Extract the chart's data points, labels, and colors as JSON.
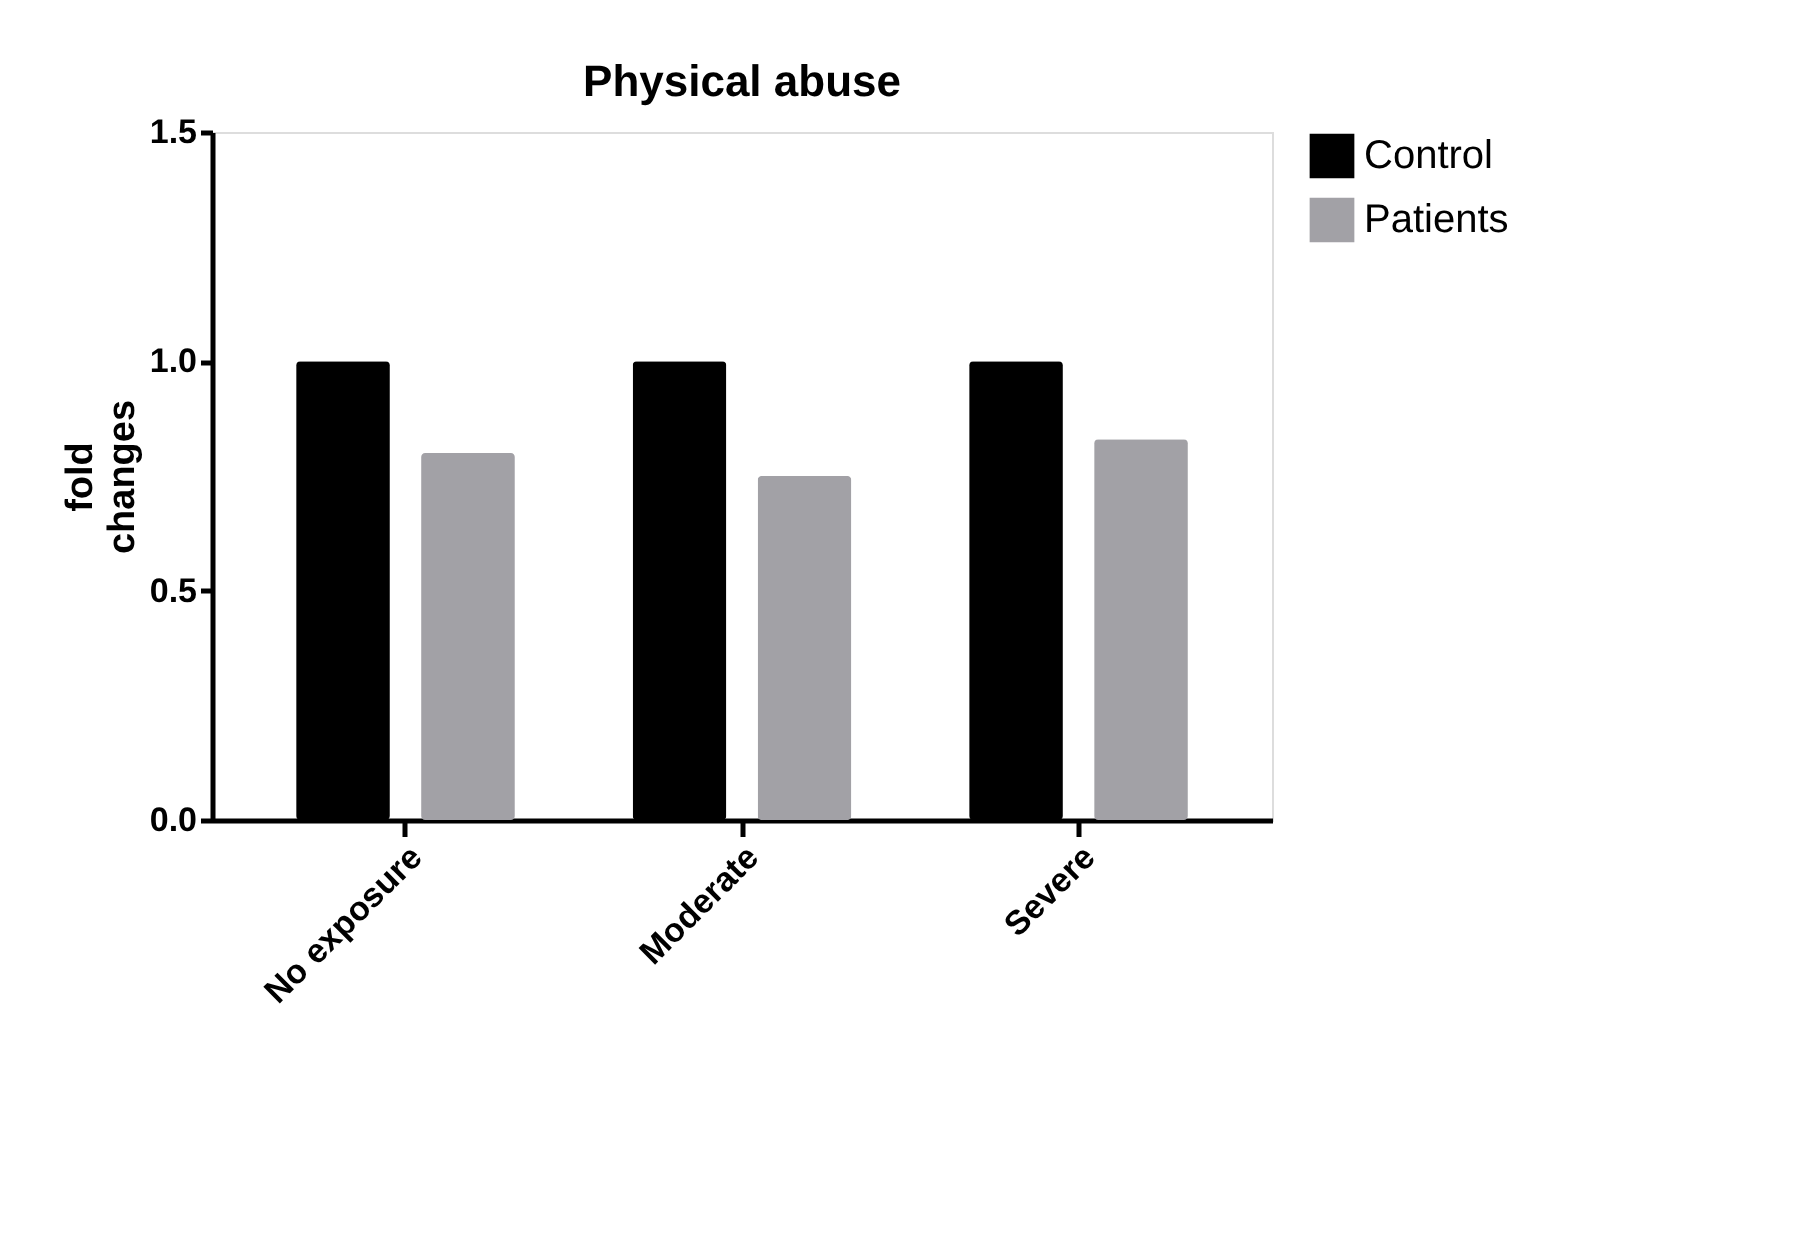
{
  "chart_data": {
    "type": "bar",
    "title": "Physical abuse",
    "ylabel": "fold\nchanges",
    "categories": [
      "No exposure",
      "Moderate",
      "Severe"
    ],
    "series": [
      {
        "name": "Control",
        "color": "#000000",
        "values": [
          1.0,
          1.0,
          1.0
        ]
      },
      {
        "name": "Patients",
        "color": "#a2a1a6",
        "values": [
          0.8,
          0.75,
          0.83
        ]
      }
    ],
    "ylim": [
      0,
      1.5
    ],
    "yticks": [
      {
        "value": 0,
        "label": "0.0"
      },
      {
        "value": 0.5,
        "label": "0.5"
      },
      {
        "value": 1,
        "label": "1.0"
      },
      {
        "value": 1.5,
        "label": "1.5"
      }
    ],
    "grid": false,
    "legend": "top right"
  }
}
